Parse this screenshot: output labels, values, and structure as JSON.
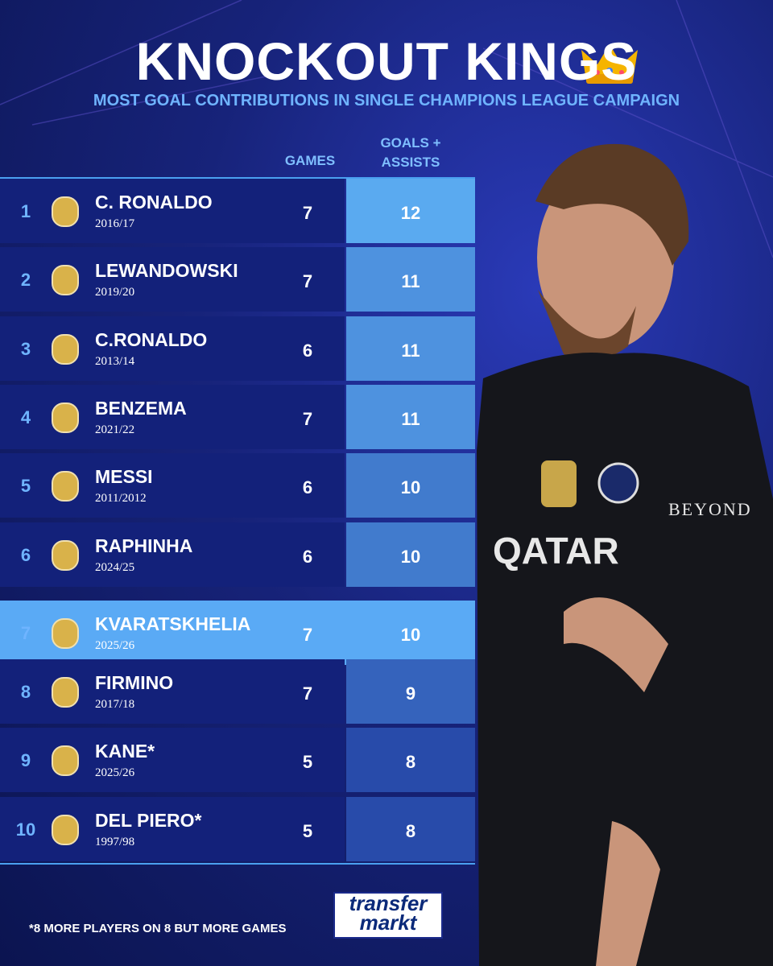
{
  "header": {
    "title": "KNOCKOUT KINGS",
    "subtitle": "MOST GOAL CONTRIBUTIONS IN SINGLE CHAMPIONS LEAGUE CAMPAIGN"
  },
  "table": {
    "columns": [
      "GAMES",
      "GOALS + ASSISTS"
    ],
    "rows": [
      {
        "rank": 1,
        "player": "C. RONALDO",
        "season": "2016/17",
        "games": 7,
        "goals_assists": 12
      },
      {
        "rank": 2,
        "player": "LEWANDOWSKI",
        "season": "2019/20",
        "games": 7,
        "goals_assists": 11
      },
      {
        "rank": 3,
        "player": "C.RONALDO",
        "season": "2013/14",
        "games": 6,
        "goals_assists": 11
      },
      {
        "rank": 4,
        "player": "BENZEMA",
        "season": "2021/22",
        "games": 7,
        "goals_assists": 11
      },
      {
        "rank": 5,
        "player": "MESSI",
        "season": "2011/2012",
        "games": 6,
        "goals_assists": 10
      },
      {
        "rank": 6,
        "player": "RAPHINHA",
        "season": "2024/25",
        "games": 6,
        "goals_assists": 10
      },
      {
        "rank": 7,
        "player": "KVARATSKHELIA",
        "season": "2025/26",
        "games": 7,
        "goals_assists": 10,
        "highlighted": true
      },
      {
        "rank": 8,
        "player": "FIRMINO",
        "season": "2017/18",
        "games": 7,
        "goals_assists": 9
      },
      {
        "rank": 9,
        "player": "KANE*",
        "season": "2025/26",
        "games": 5,
        "goals_assists": 8
      },
      {
        "rank": 10,
        "player": "DEL PIERO*",
        "season": "1997/98",
        "games": 5,
        "goals_assists": 8
      }
    ]
  },
  "footer": {
    "note": "*8 MORE PLAYERS ON 8 BUT MORE GAMES",
    "logo_top": "transfer",
    "logo_bottom": "markt"
  }
}
